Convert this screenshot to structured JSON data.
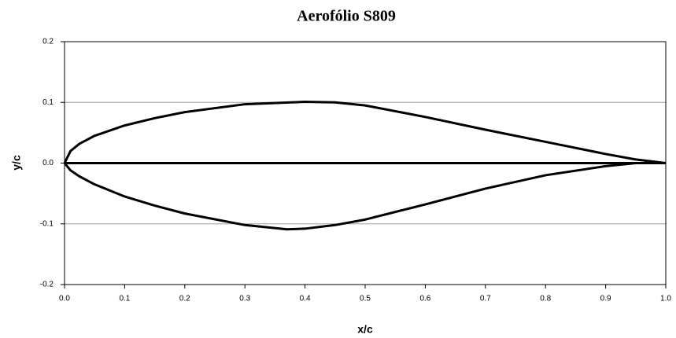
{
  "chart_data": {
    "type": "line",
    "title": "Aerofólio S809",
    "xlabel": "x/c",
    "ylabel": "y/c",
    "series": [
      {
        "color": "#000000",
        "x": [
          0,
          0.01,
          0.025,
          0.05,
          0.1,
          0.15,
          0.2,
          0.3,
          0.4,
          0.45,
          0.5,
          0.6,
          0.7,
          0.8,
          0.9,
          0.95,
          1.0
        ],
        "values": [
          0,
          0.02,
          0.032,
          0.045,
          0.062,
          0.074,
          0.084,
          0.097,
          0.101,
          0.1,
          0.095,
          0.076,
          0.055,
          0.035,
          0.015,
          0.006,
          0
        ]
      },
      {
        "color": "#000000",
        "x": [
          0,
          0.01,
          0.025,
          0.05,
          0.1,
          0.15,
          0.2,
          0.3,
          0.37,
          0.4,
          0.45,
          0.5,
          0.6,
          0.7,
          0.8,
          0.9,
          0.95,
          1.0
        ],
        "values": [
          0,
          -0.012,
          -0.022,
          -0.035,
          -0.055,
          -0.07,
          -0.083,
          -0.102,
          -0.109,
          -0.108,
          -0.102,
          -0.093,
          -0.068,
          -0.042,
          -0.02,
          -0.005,
          0,
          0
        ]
      },
      {
        "color": "#000000",
        "x": [
          0,
          1.0
        ],
        "values": [
          0,
          0
        ]
      }
    ],
    "xlim": [
      0,
      1.0
    ],
    "xticks": [
      {
        "value": 0,
        "label": "0.0"
      },
      0.1,
      0.2,
      0.3,
      0.4,
      0.5,
      0.6,
      0.7,
      0.8,
      0.9,
      {
        "value": 1.0,
        "label": "1.0"
      }
    ],
    "ylim": [
      -0.2,
      0.2
    ],
    "yticks": [
      -0.2,
      -0.1,
      {
        "value": 0,
        "label": "0.0"
      },
      0.1,
      0.2
    ],
    "grid": true
  }
}
